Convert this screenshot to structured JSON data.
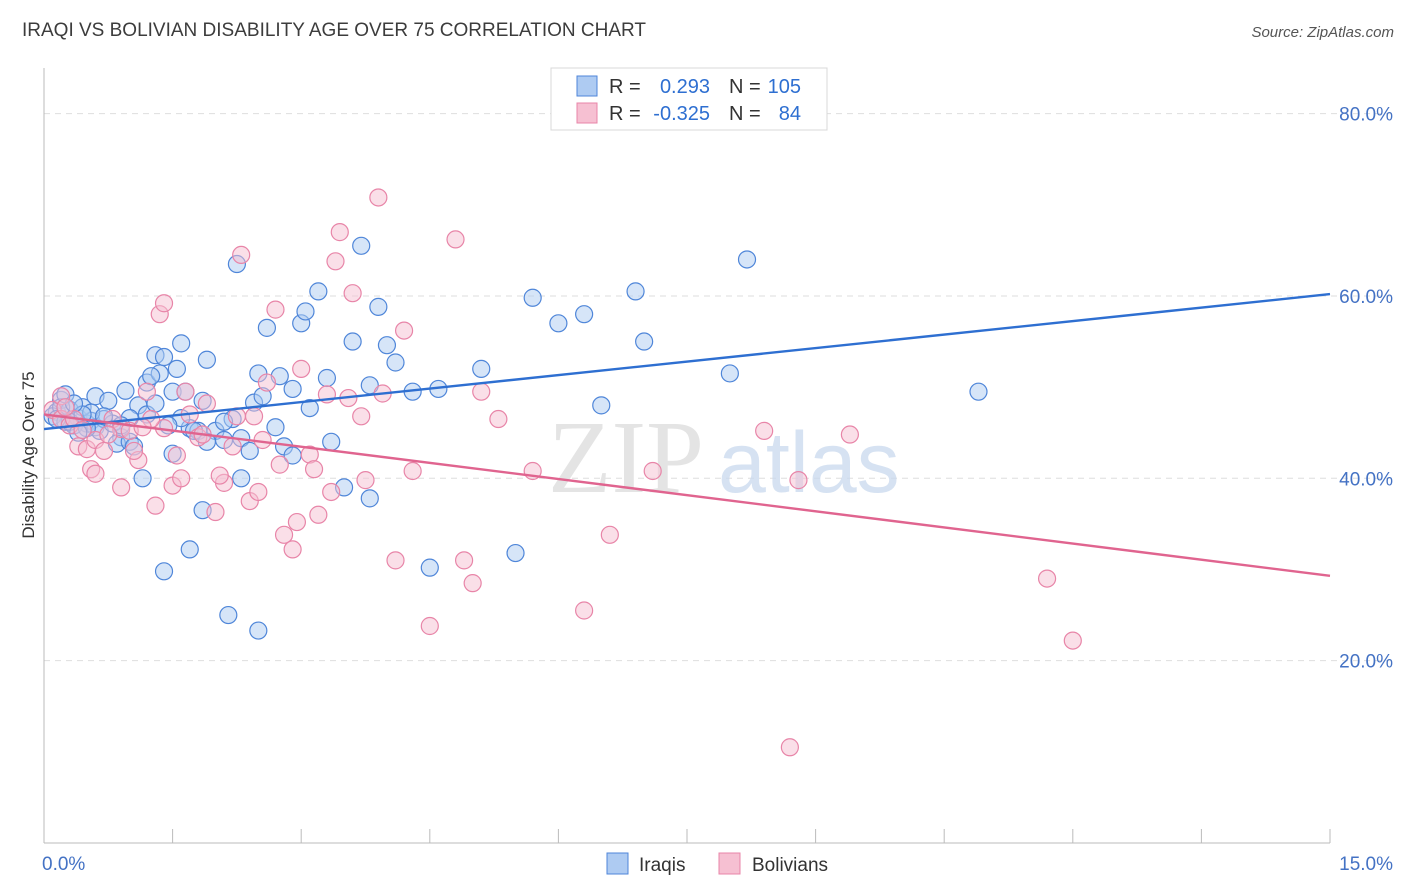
{
  "chart_data": {
    "type": "scatter",
    "title": "IRAQI VS BOLIVIAN DISABILITY AGE OVER 75 CORRELATION CHART",
    "source": "Source: ZipAtlas.com",
    "xlabel": "",
    "ylabel": "Disability Age Over 75",
    "xlim": [
      0,
      15
    ],
    "ylim": [
      0,
      85
    ],
    "x_tick_labels": [
      {
        "value": 0,
        "label": "0.0%"
      },
      {
        "value": 15,
        "label": "15.0%"
      }
    ],
    "y_tick_labels": [
      {
        "value": 20,
        "label": "20.0%"
      },
      {
        "value": 40,
        "label": "40.0%"
      },
      {
        "value": 60,
        "label": "60.0%"
      },
      {
        "value": 80,
        "label": "80.0%"
      }
    ],
    "grid": true,
    "watermark": {
      "part1": "ZIP",
      "part2": "atlas"
    },
    "legend": {
      "placement": "top-center",
      "rows": [
        {
          "r_label": "R =",
          "r_value": "0.293",
          "n_label": "N =",
          "n_value": "105"
        },
        {
          "r_label": "R =",
          "r_value": "-0.325",
          "n_label": "N =",
          "n_value": "84"
        }
      ]
    },
    "bottom_legend": [
      "Iraqis",
      "Bolivians"
    ],
    "series": [
      {
        "name": "Iraqis",
        "fill": "#aecbf2",
        "stroke": "#4f86d9",
        "line_color": "#2e6fd1",
        "trend": {
          "x0": 0,
          "y0": 45.4,
          "x1": 15,
          "y1": 60.2
        },
        "points": [
          [
            0.15,
            47.3
          ],
          [
            0.2,
            48.6
          ],
          [
            0.1,
            46.8
          ],
          [
            0.3,
            47.5
          ],
          [
            0.25,
            46.2
          ],
          [
            0.4,
            46.6
          ],
          [
            0.5,
            46.0
          ],
          [
            0.35,
            45.8
          ],
          [
            0.55,
            46.3
          ],
          [
            0.6,
            45.6
          ],
          [
            0.45,
            47.8
          ],
          [
            0.7,
            46.5
          ],
          [
            0.65,
            45.2
          ],
          [
            0.8,
            46.0
          ],
          [
            0.9,
            44.5
          ],
          [
            0.85,
            43.8
          ],
          [
            1.0,
            44.0
          ],
          [
            0.95,
            49.6
          ],
          [
            1.1,
            48.0
          ],
          [
            1.2,
            50.5
          ],
          [
            1.3,
            53.5
          ],
          [
            1.35,
            51.5
          ],
          [
            1.4,
            53.3
          ],
          [
            1.5,
            49.5
          ],
          [
            1.6,
            54.8
          ],
          [
            1.55,
            52.0
          ],
          [
            1.65,
            49.5
          ],
          [
            1.7,
            45.5
          ],
          [
            1.8,
            45.2
          ],
          [
            1.85,
            48.5
          ],
          [
            1.9,
            53.0
          ],
          [
            2.0,
            45.2
          ],
          [
            2.1,
            44.2
          ],
          [
            2.2,
            46.5
          ],
          [
            2.25,
            63.5
          ],
          [
            2.3,
            44.4
          ],
          [
            2.4,
            43.0
          ],
          [
            2.45,
            48.3
          ],
          [
            2.5,
            51.5
          ],
          [
            2.55,
            49.0
          ],
          [
            2.6,
            56.5
          ],
          [
            2.7,
            45.6
          ],
          [
            2.8,
            43.5
          ],
          [
            2.9,
            49.8
          ],
          [
            3.0,
            57.0
          ],
          [
            3.05,
            58.3
          ],
          [
            3.1,
            47.7
          ],
          [
            3.2,
            60.5
          ],
          [
            3.3,
            51.0
          ],
          [
            3.5,
            39.0
          ],
          [
            3.6,
            55.0
          ],
          [
            3.7,
            65.5
          ],
          [
            3.8,
            50.2
          ],
          [
            3.9,
            58.8
          ],
          [
            4.0,
            54.6
          ],
          [
            4.1,
            52.7
          ],
          [
            4.3,
            49.5
          ],
          [
            4.5,
            30.2
          ],
          [
            4.6,
            49.8
          ],
          [
            5.1,
            52.0
          ],
          [
            5.5,
            31.8
          ],
          [
            5.7,
            59.8
          ],
          [
            6.0,
            57.0
          ],
          [
            6.3,
            58.0
          ],
          [
            6.5,
            48.0
          ],
          [
            6.9,
            60.5
          ],
          [
            7.0,
            55.0
          ],
          [
            8.0,
            51.5
          ],
          [
            8.2,
            64.0
          ],
          [
            10.9,
            49.5
          ],
          [
            1.4,
            29.8
          ],
          [
            1.7,
            32.2
          ],
          [
            1.85,
            36.5
          ],
          [
            2.15,
            25.0
          ],
          [
            2.5,
            23.3
          ],
          [
            3.8,
            37.8
          ],
          [
            1.15,
            40.0
          ],
          [
            1.5,
            42.7
          ],
          [
            2.3,
            40.0
          ],
          [
            1.0,
            46.6
          ],
          [
            1.2,
            47.0
          ],
          [
            0.6,
            49.0
          ],
          [
            0.75,
            48.5
          ],
          [
            1.9,
            44.0
          ],
          [
            1.6,
            46.6
          ],
          [
            2.1,
            46.2
          ],
          [
            2.75,
            51.2
          ],
          [
            3.35,
            44.0
          ],
          [
            1.45,
            45.8
          ],
          [
            0.5,
            45.5
          ],
          [
            0.3,
            46.2
          ],
          [
            0.2,
            47.8
          ],
          [
            0.15,
            46.5
          ],
          [
            1.75,
            45.2
          ],
          [
            2.9,
            42.5
          ],
          [
            0.25,
            49.2
          ],
          [
            1.3,
            48.2
          ],
          [
            0.4,
            45.0
          ],
          [
            0.55,
            47.2
          ],
          [
            0.9,
            45.8
          ],
          [
            1.05,
            43.5
          ],
          [
            1.25,
            51.2
          ],
          [
            0.45,
            47.0
          ],
          [
            0.35,
            48.2
          ],
          [
            0.7,
            46.8
          ]
        ]
      },
      {
        "name": "Bolivians",
        "fill": "#f6c0d2",
        "stroke": "#e885a8",
        "line_color": "#e0648f",
        "trend": {
          "x0": 0,
          "y0": 47.0,
          "x1": 15,
          "y1": 29.3
        },
        "points": [
          [
            0.1,
            47.5
          ],
          [
            0.2,
            46.5
          ],
          [
            0.3,
            45.8
          ],
          [
            0.4,
            43.5
          ],
          [
            0.5,
            43.2
          ],
          [
            0.6,
            44.2
          ],
          [
            0.7,
            43.0
          ],
          [
            0.8,
            46.5
          ],
          [
            0.9,
            45.4
          ],
          [
            1.0,
            45.2
          ],
          [
            1.1,
            42.0
          ],
          [
            1.2,
            49.5
          ],
          [
            1.3,
            37.0
          ],
          [
            1.4,
            45.5
          ],
          [
            1.5,
            39.2
          ],
          [
            1.6,
            40.0
          ],
          [
            1.7,
            47.0
          ],
          [
            1.8,
            44.5
          ],
          [
            1.9,
            48.2
          ],
          [
            2.0,
            36.3
          ],
          [
            2.1,
            39.5
          ],
          [
            2.2,
            43.5
          ],
          [
            2.3,
            64.5
          ],
          [
            2.4,
            37.5
          ],
          [
            2.5,
            38.5
          ],
          [
            2.6,
            50.5
          ],
          [
            2.7,
            58.5
          ],
          [
            2.8,
            33.8
          ],
          [
            2.9,
            32.2
          ],
          [
            3.0,
            52.0
          ],
          [
            3.1,
            42.6
          ],
          [
            3.2,
            36.0
          ],
          [
            3.3,
            49.2
          ],
          [
            3.4,
            63.8
          ],
          [
            3.45,
            67.0
          ],
          [
            3.6,
            60.3
          ],
          [
            3.7,
            46.8
          ],
          [
            3.9,
            70.8
          ],
          [
            4.1,
            31.0
          ],
          [
            4.2,
            56.2
          ],
          [
            4.3,
            40.8
          ],
          [
            4.5,
            23.8
          ],
          [
            4.8,
            66.2
          ],
          [
            4.9,
            31.0
          ],
          [
            5.0,
            28.5
          ],
          [
            5.1,
            49.5
          ],
          [
            5.3,
            46.5
          ],
          [
            5.7,
            40.8
          ],
          [
            6.3,
            25.5
          ],
          [
            6.6,
            33.8
          ],
          [
            7.1,
            40.8
          ],
          [
            8.4,
            45.2
          ],
          [
            8.8,
            39.8
          ],
          [
            9.4,
            44.8
          ],
          [
            11.7,
            29.0
          ],
          [
            12.0,
            22.2
          ],
          [
            8.7,
            10.5
          ],
          [
            1.35,
            58.0
          ],
          [
            1.4,
            59.2
          ],
          [
            0.55,
            41.0
          ],
          [
            0.2,
            49.0
          ],
          [
            0.35,
            46.5
          ],
          [
            0.6,
            40.5
          ],
          [
            0.9,
            39.0
          ],
          [
            1.05,
            43.0
          ],
          [
            1.25,
            46.5
          ],
          [
            1.55,
            42.5
          ],
          [
            1.65,
            49.5
          ],
          [
            1.85,
            44.8
          ],
          [
            2.05,
            40.3
          ],
          [
            2.25,
            46.8
          ],
          [
            2.45,
            46.8
          ],
          [
            2.55,
            44.2
          ],
          [
            2.75,
            41.5
          ],
          [
            2.95,
            35.2
          ],
          [
            3.15,
            41.0
          ],
          [
            3.35,
            38.5
          ],
          [
            3.55,
            48.8
          ],
          [
            3.75,
            39.8
          ],
          [
            3.95,
            49.3
          ],
          [
            0.45,
            45.3
          ],
          [
            0.75,
            44.8
          ],
          [
            1.15,
            45.6
          ],
          [
            0.25,
            47.8
          ]
        ]
      }
    ]
  }
}
